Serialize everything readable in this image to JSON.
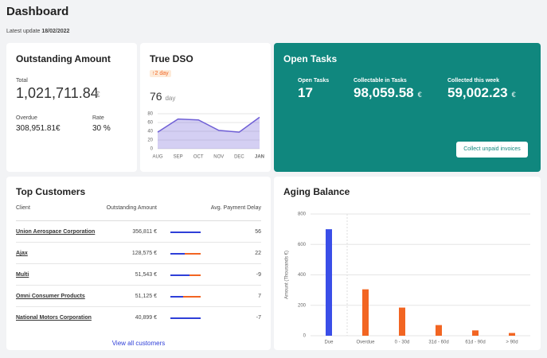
{
  "header": {
    "title": "Dashboard",
    "update_label": "Latest update",
    "update_date": "18/02/2022"
  },
  "outstanding": {
    "title": "Outstanding Amount",
    "total_label": "Total",
    "total": "1,021,711.84",
    "currency": "€",
    "overdue_label": "Overdue",
    "overdue": "308,951.81€",
    "rate_label": "Rate",
    "rate": "30 %"
  },
  "dso": {
    "title": "True DSO",
    "change": "2 day",
    "value": "76",
    "unit": "day"
  },
  "open_tasks": {
    "title": "Open Tasks",
    "items": [
      {
        "label": "Open Tasks",
        "value": "17"
      },
      {
        "label": "Collectable in Tasks",
        "value": "98,059.58",
        "currency": "€"
      },
      {
        "label": "Collected this week",
        "value": "59,002.23",
        "currency": "€"
      }
    ],
    "button": "Collect unpaid invoices"
  },
  "customers": {
    "title": "Top Customers",
    "columns": [
      "Client",
      "Outstanding Amount",
      "Avg. Payment Delay"
    ],
    "rows": [
      [
        "Union Aerospace Corporation",
        "356,811 €",
        "56"
      ],
      [
        "Ajax",
        "128,575 €",
        "22"
      ],
      [
        "Multi",
        "51,543 €",
        "-9"
      ],
      [
        "Omni Consumer Products",
        "51,125 €",
        "7"
      ],
      [
        "National Motors Corporation",
        "40,899 €",
        "-7"
      ]
    ],
    "link": "View all customers"
  },
  "aging_title": "Aging Balance",
  "chart_data": [
    {
      "type": "line",
      "categories": [
        "AUG",
        "SEP",
        "OCT",
        "NOV",
        "DEC",
        "JAN"
      ],
      "values": [
        38,
        68,
        66,
        42,
        38,
        72
      ],
      "color": "#6f5fd6",
      "ylim": [
        0,
        80
      ],
      "yticks": [
        0,
        20,
        40,
        60,
        80
      ],
      "grid": true
    },
    {
      "type": "bar",
      "y_label": "Amount (Thousands €)",
      "categories": [
        "Due",
        "Overdue",
        "0 - 30d",
        "31d - 60d",
        "61d - 90d",
        "> 90d"
      ],
      "values": [
        700,
        305,
        185,
        70,
        35,
        18
      ],
      "colors": [
        "#3a4ee8",
        "#f26522",
        "#f26522",
        "#f26522",
        "#f26522",
        "#f26522"
      ],
      "ylim": [
        0,
        800
      ],
      "yticks": [
        0,
        200,
        400,
        600,
        800
      ],
      "grid": true
    }
  ]
}
